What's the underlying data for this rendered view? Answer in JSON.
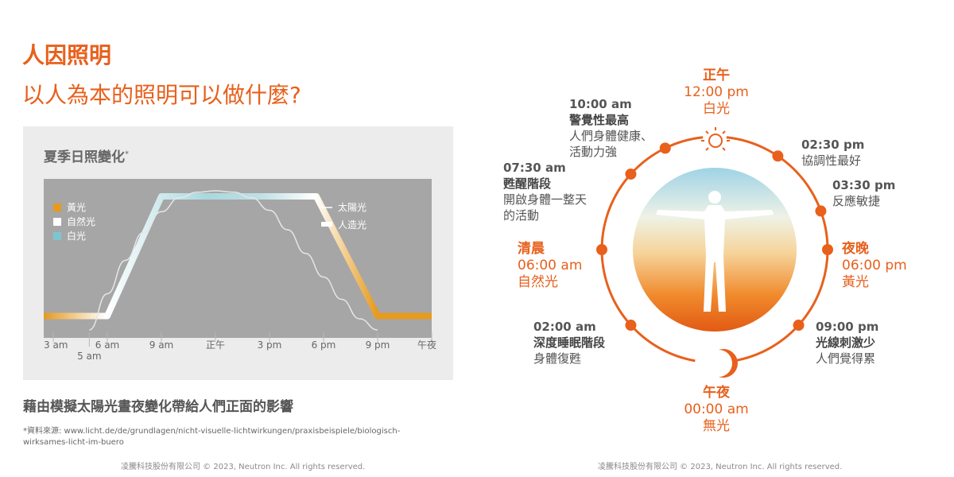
{
  "header": {
    "title": "人因照明",
    "subtitle": "以人為本的照明可以做什麼?"
  },
  "chart_panel": {
    "title": "夏季日照變化",
    "title_mark": "*"
  },
  "chart_data": {
    "type": "line",
    "x_ticks": [
      "3 am",
      "5 am",
      "6 am",
      "9 am",
      "正午",
      "3 pm",
      "6 pm",
      "9 pm",
      "午夜"
    ],
    "x_tick_hours": [
      3,
      5,
      6,
      9,
      12,
      15,
      18,
      21,
      24
    ],
    "legend_left": [
      {
        "label": "黃光",
        "color": "#e69a1e"
      },
      {
        "label": "自然光",
        "color": "#ffffff"
      },
      {
        "label": "白光",
        "color": "#7ec6cf"
      }
    ],
    "legend_right": [
      {
        "label": "太陽光",
        "style": "thin-line"
      },
      {
        "label": "人造光",
        "style": "thick-band"
      }
    ],
    "series": [
      {
        "name": "太陽光",
        "x": [
          5,
          6,
          7,
          8,
          9,
          10,
          11,
          12,
          13,
          14,
          15,
          16,
          17,
          18,
          19,
          20,
          21
        ],
        "values": [
          0,
          0.26,
          0.5,
          0.7,
          0.85,
          0.95,
          0.99,
          1.0,
          0.99,
          0.95,
          0.86,
          0.72,
          0.55,
          0.38,
          0.22,
          0.08,
          0
        ]
      },
      {
        "name": "人造光",
        "x": [
          3,
          6,
          9,
          12,
          15,
          17.6,
          21,
          24
        ],
        "values": [
          0.1,
          0.1,
          0.96,
          0.96,
          0.96,
          0.96,
          0.1,
          0.1
        ]
      }
    ],
    "band_colors": [
      "#e69a1e",
      "#ffffff",
      "#7ec6cf",
      "#ffffff",
      "#e69a1e"
    ]
  },
  "tagline": "藉由模擬太陽光晝夜變化帶給人們正面的影響",
  "source": "*資料來源: www.licht.de/de/grundlagen/nicht-visuelle-lichtwirkungen/praxisbeispiele/biologisch-wirksames-licht-im-buero",
  "copyright_left": "凌騰科技股份有限公司 © 2023, Neutron Inc. All rights reserved.",
  "copyright_right": "凌騰科技股份有限公司 © 2023, Neutron Inc. All rights reserved.",
  "clock": {
    "accent": "#e8601c",
    "labels": {
      "noon": {
        "heading": "正午",
        "time": "12:00 pm",
        "desc": "白光"
      },
      "t1000": {
        "time": "10:00 am",
        "heading": "警覺性最高",
        "desc1": "人們身體健康、",
        "desc2": "活動力強"
      },
      "t0730": {
        "time": "07:30 am",
        "heading": "甦醒階段",
        "desc1": "開啟身體一整天",
        "desc2": "的活動"
      },
      "dawn": {
        "heading": "清晨",
        "time": "06:00 am",
        "desc": "自然光"
      },
      "t0200": {
        "time": "02:00 am",
        "heading": "深度睡眠階段",
        "desc": "身體復甦"
      },
      "midnight": {
        "heading": "午夜",
        "time": "00:00 am",
        "desc": "無光"
      },
      "t0900": {
        "time": "09:00 pm",
        "heading": "光線刺激少",
        "desc": "人們覺得累"
      },
      "evening": {
        "heading": "夜晚",
        "time": "06:00 pm",
        "desc": "黃光"
      },
      "t0330": {
        "time": "03:30 pm",
        "desc": "反應敏捷"
      },
      "t0230": {
        "time": "02:30 pm",
        "desc": "協調性最好"
      }
    }
  }
}
